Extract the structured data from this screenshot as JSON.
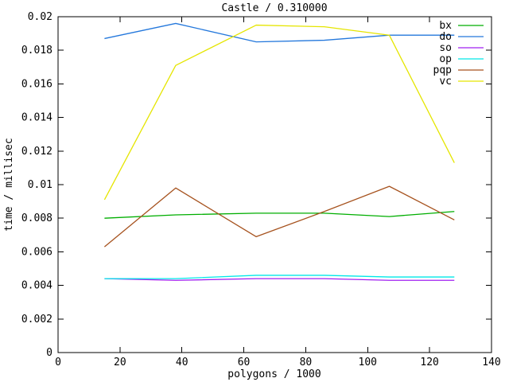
{
  "window": {
    "background": "#ffffff",
    "foreground": "#000000"
  },
  "chart_data": {
    "type": "line",
    "title": "Castle / 0.310000",
    "xlabel": "polygons / 1000",
    "ylabel": "time / millisec",
    "xlim": [
      0,
      140
    ],
    "ylim": [
      0,
      0.02
    ],
    "grid": false,
    "legend_position": "top-right-inside",
    "xticks": [
      0,
      20,
      40,
      60,
      80,
      100,
      120,
      140
    ],
    "xtick_labels": [
      "0",
      "20",
      "40",
      "60",
      "80",
      "100",
      "120",
      "140"
    ],
    "yticks": [
      0,
      0.002,
      0.004,
      0.006,
      0.008,
      0.01,
      0.012,
      0.014,
      0.016,
      0.018,
      0.02
    ],
    "ytick_labels": [
      "0",
      "0.002",
      "0.004",
      "0.006",
      "0.008",
      "0.01",
      "0.012",
      "0.014",
      "0.016",
      "0.018",
      "0.02"
    ],
    "x": [
      15,
      38,
      64,
      86,
      107,
      128
    ],
    "series": [
      {
        "name": "bx",
        "color": "#00AE00",
        "values": [
          0.008,
          0.0082,
          0.0083,
          0.0083,
          0.0081,
          0.0084
        ]
      },
      {
        "name": "do",
        "color": "#2478DC",
        "values": [
          0.0187,
          0.0196,
          0.0185,
          0.0186,
          0.0189,
          0.0189
        ]
      },
      {
        "name": "so",
        "color": "#A020F0",
        "values": [
          0.0044,
          0.0043,
          0.0044,
          0.0044,
          0.0043,
          0.0043
        ]
      },
      {
        "name": "op",
        "color": "#00E8E8",
        "values": [
          0.0044,
          0.0044,
          0.0046,
          0.0046,
          0.0045,
          0.0045
        ]
      },
      {
        "name": "pqp",
        "color": "#A6521E",
        "values": [
          0.0063,
          0.0098,
          0.0069,
          0.0084,
          0.0099,
          0.0079
        ]
      },
      {
        "name": "vc",
        "color": "#E5E500",
        "values": [
          0.0091,
          0.0171,
          0.0195,
          0.0194,
          0.0189,
          0.0113
        ]
      }
    ]
  }
}
